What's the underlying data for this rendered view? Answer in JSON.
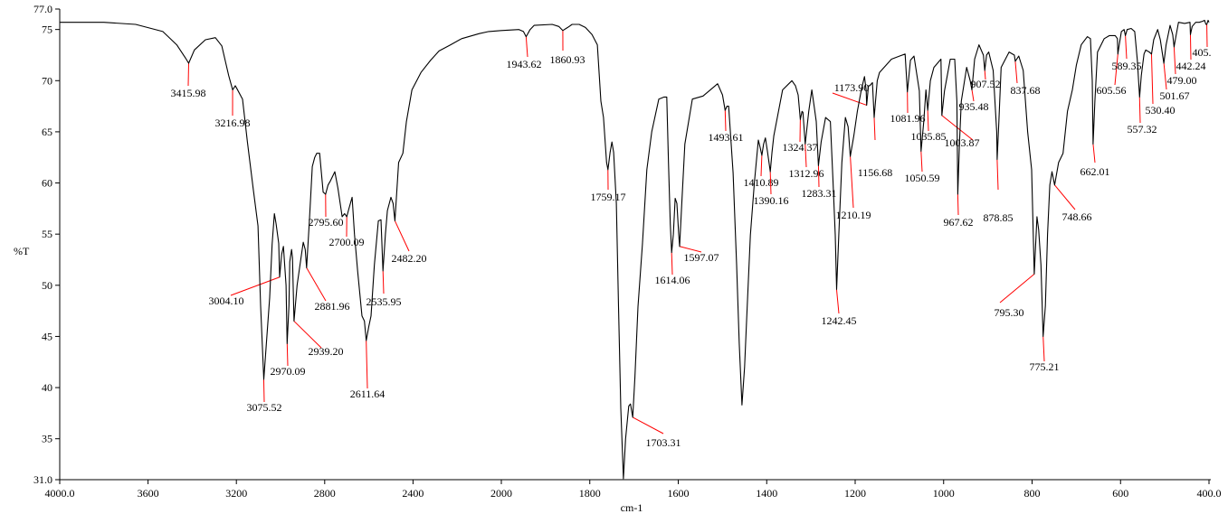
{
  "chart_data": {
    "type": "line",
    "xlabel": "cm-1",
    "ylabel": "%T",
    "xlim": [
      4000,
      400
    ],
    "x_reversed": true,
    "x_scale_change_at": 2000,
    "ylim": [
      31,
      77
    ],
    "grid": false,
    "x_ticks": [
      "4000.0",
      "3600",
      "3200",
      "2800",
      "2400",
      "2000",
      "1800",
      "1600",
      "1400",
      "1200",
      "1000",
      "800",
      "600",
      "400.0"
    ],
    "x_tick_values": [
      4000,
      3600,
      3200,
      2800,
      2400,
      2000,
      1800,
      1600,
      1400,
      1200,
      1000,
      800,
      600,
      400
    ],
    "y_ticks": [
      "77.0",
      "75",
      "70",
      "65",
      "60",
      "55",
      "50",
      "45",
      "40",
      "35",
      "31.0"
    ],
    "y_tick_values": [
      77,
      75,
      70,
      65,
      60,
      55,
      50,
      45,
      40,
      35,
      31
    ],
    "colors": {
      "trace": "#000000",
      "peak_marker": "#ff0000",
      "axis": "#000000"
    },
    "trace": [
      [
        4000,
        75.7
      ],
      [
        3800,
        75.7
      ],
      [
        3656,
        75.5
      ],
      [
        3533,
        74.8
      ],
      [
        3470,
        73.5
      ],
      [
        3430,
        72.2
      ],
      [
        3416,
        71.7
      ],
      [
        3390,
        73.0
      ],
      [
        3340,
        74.0
      ],
      [
        3295,
        74.2
      ],
      [
        3266,
        73.4
      ],
      [
        3235,
        70.5
      ],
      [
        3217,
        69.1
      ],
      [
        3205,
        69.5
      ],
      [
        3197,
        69.2
      ],
      [
        3172,
        68.2
      ],
      [
        3150,
        64
      ],
      [
        3123,
        59.3
      ],
      [
        3102,
        55.8
      ],
      [
        3090,
        48
      ],
      [
        3076,
        40.8
      ],
      [
        3065,
        44
      ],
      [
        3049,
        48.8
      ],
      [
        3038,
        54
      ],
      [
        3028,
        57.0
      ],
      [
        3020,
        56
      ],
      [
        3008,
        54.1
      ],
      [
        3004,
        50.8
      ],
      [
        2995,
        53
      ],
      [
        2987,
        53.8
      ],
      [
        2975,
        50
      ],
      [
        2970,
        44.3
      ],
      [
        2962,
        48
      ],
      [
        2958,
        52.3
      ],
      [
        2950,
        53.5
      ],
      [
        2946,
        52.7
      ],
      [
        2939,
        46.5
      ],
      [
        2925,
        50
      ],
      [
        2910,
        52.3
      ],
      [
        2897,
        54.2
      ],
      [
        2888,
        53.5
      ],
      [
        2882,
        51.7
      ],
      [
        2870,
        56
      ],
      [
        2856,
        61.6
      ],
      [
        2845,
        62.5
      ],
      [
        2836,
        62.9
      ],
      [
        2823,
        62.9
      ],
      [
        2807,
        59.1
      ],
      [
        2796,
        58.9
      ],
      [
        2785,
        59.8
      ],
      [
        2774,
        60.2
      ],
      [
        2754,
        61.1
      ],
      [
        2740,
        59.5
      ],
      [
        2721,
        56.7
      ],
      [
        2710,
        57.0
      ],
      [
        2700,
        56.7
      ],
      [
        2690,
        57.5
      ],
      [
        2676,
        58.6
      ],
      [
        2665,
        55
      ],
      [
        2651,
        51.4
      ],
      [
        2631,
        47.0
      ],
      [
        2620,
        46.5
      ],
      [
        2612,
        44.6
      ],
      [
        2600,
        46
      ],
      [
        2590,
        47.0
      ],
      [
        2575,
        52
      ],
      [
        2557,
        56.3
      ],
      [
        2545,
        56.4
      ],
      [
        2536,
        51.4
      ],
      [
        2525,
        55
      ],
      [
        2516,
        57.3
      ],
      [
        2500,
        58.6
      ],
      [
        2490,
        58
      ],
      [
        2482,
        56.3
      ],
      [
        2465,
        62
      ],
      [
        2446,
        62.9
      ],
      [
        2430,
        66
      ],
      [
        2405,
        69.1
      ],
      [
        2364,
        70.8
      ],
      [
        2320,
        72
      ],
      [
        2282,
        72.9
      ],
      [
        2230,
        73.5
      ],
      [
        2180,
        74.1
      ],
      [
        2100,
        74.6
      ],
      [
        2057,
        74.8
      ],
      [
        2000,
        74.9
      ],
      [
        1960,
        75.0
      ],
      [
        1950,
        74.8
      ],
      [
        1944,
        74.3
      ],
      [
        1935,
        75.0
      ],
      [
        1926,
        75.4
      ],
      [
        1885,
        75.5
      ],
      [
        1870,
        75.3
      ],
      [
        1861,
        74.9
      ],
      [
        1850,
        75.2
      ],
      [
        1840,
        75.5
      ],
      [
        1824,
        75.5
      ],
      [
        1810,
        75.2
      ],
      [
        1795,
        74.5
      ],
      [
        1783,
        73.5
      ],
      [
        1775,
        68
      ],
      [
        1769,
        66.4
      ],
      [
        1762,
        62
      ],
      [
        1759,
        61.3
      ],
      [
        1754,
        63
      ],
      [
        1750,
        64.0
      ],
      [
        1746,
        63
      ],
      [
        1740,
        58
      ],
      [
        1735,
        47.9
      ],
      [
        1730,
        38
      ],
      [
        1724,
        31.1
      ],
      [
        1719,
        35
      ],
      [
        1712,
        38.2
      ],
      [
        1708,
        38.4
      ],
      [
        1703,
        37.1
      ],
      [
        1698,
        41
      ],
      [
        1691,
        47.9
      ],
      [
        1681,
        54
      ],
      [
        1671,
        61.3
      ],
      [
        1660,
        65
      ],
      [
        1644,
        68.2
      ],
      [
        1632,
        68.4
      ],
      [
        1626,
        68.4
      ],
      [
        1622,
        62
      ],
      [
        1618,
        56
      ],
      [
        1615,
        53.2
      ],
      [
        1611,
        55
      ],
      [
        1607,
        58.5
      ],
      [
        1603,
        58.0
      ],
      [
        1599,
        55
      ],
      [
        1597,
        53.8
      ],
      [
        1592,
        58
      ],
      [
        1585,
        63.8
      ],
      [
        1568,
        68.2
      ],
      [
        1544,
        68.5
      ],
      [
        1530,
        69
      ],
      [
        1511,
        69.7
      ],
      [
        1500,
        68.6
      ],
      [
        1494,
        67.1
      ],
      [
        1490,
        67.5
      ],
      [
        1486,
        67.5
      ],
      [
        1476,
        61
      ],
      [
        1468,
        52
      ],
      [
        1462,
        44.3
      ],
      [
        1456,
        38.3
      ],
      [
        1450,
        42
      ],
      [
        1446,
        46.1
      ],
      [
        1437,
        54.9
      ],
      [
        1428,
        60
      ],
      [
        1419,
        64.2
      ],
      [
        1415,
        63.5
      ],
      [
        1411,
        62.7
      ],
      [
        1407,
        63.8
      ],
      [
        1403,
        64.4
      ],
      [
        1398,
        63
      ],
      [
        1392,
        61.1
      ],
      [
        1388,
        63
      ],
      [
        1384,
        64.6
      ],
      [
        1364,
        69.1
      ],
      [
        1343,
        70.0
      ],
      [
        1335,
        69.5
      ],
      [
        1329,
        68.6
      ],
      [
        1324,
        66.2
      ],
      [
        1320,
        67
      ],
      [
        1318,
        66.9
      ],
      [
        1313,
        63.8
      ],
      [
        1305,
        67
      ],
      [
        1298,
        69.1
      ],
      [
        1292,
        67.3
      ],
      [
        1288,
        66
      ],
      [
        1283,
        61.7
      ],
      [
        1277,
        64
      ],
      [
        1267,
        66.4
      ],
      [
        1256,
        66.0
      ],
      [
        1250,
        60
      ],
      [
        1245,
        54.9
      ],
      [
        1242,
        49.6
      ],
      [
        1237,
        54.9
      ],
      [
        1230,
        62
      ],
      [
        1222,
        66.4
      ],
      [
        1216,
        65.5
      ],
      [
        1211,
        62.6
      ],
      [
        1203,
        64.6
      ],
      [
        1195,
        67
      ],
      [
        1186,
        69.1
      ],
      [
        1179,
        70.4
      ],
      [
        1175,
        69
      ],
      [
        1174,
        67.6
      ],
      [
        1170,
        69.5
      ],
      [
        1167,
        69.5
      ],
      [
        1161,
        69.8
      ],
      [
        1157,
        66.4
      ],
      [
        1150,
        70
      ],
      [
        1145,
        70.8
      ],
      [
        1118,
        72.1
      ],
      [
        1100,
        72.4
      ],
      [
        1087,
        72.6
      ],
      [
        1082,
        68.9
      ],
      [
        1075,
        72
      ],
      [
        1067,
        72.4
      ],
      [
        1055,
        69
      ],
      [
        1051,
        63.1
      ],
      [
        1045,
        66
      ],
      [
        1040,
        69.1
      ],
      [
        1036,
        67.1
      ],
      [
        1030,
        70
      ],
      [
        1022,
        71.3
      ],
      [
        1006,
        72.1
      ],
      [
        1004,
        66.6
      ],
      [
        998,
        69
      ],
      [
        985,
        72.1
      ],
      [
        975,
        72.1
      ],
      [
        970,
        68
      ],
      [
        968,
        58.9
      ],
      [
        964,
        64
      ],
      [
        960,
        68
      ],
      [
        948,
        71.3
      ],
      [
        940,
        70
      ],
      [
        936,
        69.1
      ],
      [
        930,
        72.1
      ],
      [
        920,
        73.5
      ],
      [
        910,
        72.5
      ],
      [
        907,
        71.0
      ],
      [
        903,
        72.5
      ],
      [
        898,
        72.8
      ],
      [
        888,
        71
      ],
      [
        880,
        65
      ],
      [
        879,
        62.3
      ],
      [
        875,
        66
      ],
      [
        870,
        71.3
      ],
      [
        852,
        72.8
      ],
      [
        840,
        72.5
      ],
      [
        838,
        71.9
      ],
      [
        830,
        72.4
      ],
      [
        820,
        71
      ],
      [
        810,
        65
      ],
      [
        801,
        61.3
      ],
      [
        795,
        51.1
      ],
      [
        789,
        56.7
      ],
      [
        785,
        55.4
      ],
      [
        780,
        52
      ],
      [
        775,
        45.0
      ],
      [
        770,
        48
      ],
      [
        765,
        55
      ],
      [
        760,
        59.8
      ],
      [
        755,
        61.1
      ],
      [
        749,
        59.8
      ],
      [
        740,
        62
      ],
      [
        730,
        62.9
      ],
      [
        720,
        67
      ],
      [
        709,
        69.1
      ],
      [
        700,
        71.5
      ],
      [
        689,
        73.5
      ],
      [
        675,
        74.3
      ],
      [
        668,
        74.1
      ],
      [
        664,
        70
      ],
      [
        662,
        63.8
      ],
      [
        658,
        68
      ],
      [
        652,
        72.8
      ],
      [
        637,
        74.1
      ],
      [
        625,
        74.4
      ],
      [
        612,
        74.4
      ],
      [
        607,
        74.1
      ],
      [
        606,
        72.6
      ],
      [
        603,
        73.5
      ],
      [
        598,
        74.8
      ],
      [
        592,
        75.0
      ],
      [
        589,
        74.4
      ],
      [
        585,
        75.0
      ],
      [
        576,
        75.1
      ],
      [
        568,
        74.8
      ],
      [
        562,
        72
      ],
      [
        557,
        68.4
      ],
      [
        553,
        70.5
      ],
      [
        547,
        72.6
      ],
      [
        543,
        73
      ],
      [
        535,
        72.8
      ],
      [
        530,
        72.6
      ],
      [
        525,
        74
      ],
      [
        516,
        75.0
      ],
      [
        510,
        74
      ],
      [
        502,
        71.7
      ],
      [
        497,
        73.5
      ],
      [
        488,
        75.4
      ],
      [
        482,
        74.5
      ],
      [
        479,
        73.3
      ],
      [
        474,
        74.5
      ],
      [
        469,
        75.7
      ],
      [
        455,
        75.6
      ],
      [
        443,
        75.7
      ],
      [
        442,
        74.5
      ],
      [
        438,
        75.3
      ],
      [
        430,
        75.7
      ],
      [
        422,
        75.7
      ],
      [
        415,
        75.8
      ],
      [
        410,
        75.9
      ],
      [
        407,
        75.5
      ],
      [
        405,
        75.5
      ],
      [
        402,
        75.9
      ],
      [
        400,
        75.7
      ]
    ],
    "peak_labels": [
      {
        "text": "3415.98",
        "x": 3416,
        "y": 71.7
      },
      {
        "text": "3216.98",
        "x": 3217,
        "y": 69.1
      },
      {
        "text": "3075.52",
        "x": 3076,
        "y": 40.8
      },
      {
        "text": "3004.10",
        "x": 3004,
        "y": 50.8
      },
      {
        "text": "2970.09",
        "x": 2970,
        "y": 44.3
      },
      {
        "text": "2939.20",
        "x": 2939,
        "y": 46.5
      },
      {
        "text": "2881.96",
        "x": 2882,
        "y": 51.7
      },
      {
        "text": "2795.60",
        "x": 2796,
        "y": 58.9
      },
      {
        "text": "2700.09",
        "x": 2700,
        "y": 56.7
      },
      {
        "text": "2611.64",
        "x": 2612,
        "y": 44.6
      },
      {
        "text": "2535.95",
        "x": 2536,
        "y": 51.4
      },
      {
        "text": "2482.20",
        "x": 2482,
        "y": 56.3
      },
      {
        "text": "1943.62",
        "x": 1944,
        "y": 74.3
      },
      {
        "text": "1860.93",
        "x": 1861,
        "y": 74.9
      },
      {
        "text": "1759.17",
        "x": 1759,
        "y": 61.3
      },
      {
        "text": "1703.31",
        "x": 1703,
        "y": 37.1
      },
      {
        "text": "1614.06",
        "x": 1615,
        "y": 53.2
      },
      {
        "text": "1597.07",
        "x": 1597,
        "y": 53.8
      },
      {
        "text": "1493.61",
        "x": 1494,
        "y": 67.1
      },
      {
        "text": "1410.89",
        "x": 1411,
        "y": 62.7
      },
      {
        "text": "1390.16",
        "x": 1392,
        "y": 61.1
      },
      {
        "text": "1324.37",
        "x": 1324,
        "y": 66.2
      },
      {
        "text": "1312.96",
        "x": 1313,
        "y": 63.8
      },
      {
        "text": "1283.31",
        "x": 1283,
        "y": 61.7
      },
      {
        "text": "1242.45",
        "x": 1242,
        "y": 49.6
      },
      {
        "text": "1210.19",
        "x": 1211,
        "y": 62.6
      },
      {
        "text": "1173.90",
        "x": 1174,
        "y": 67.6
      },
      {
        "text": "1156.68",
        "x": 1157,
        "y": 66.4
      },
      {
        "text": "1081.96",
        "x": 1082,
        "y": 68.9
      },
      {
        "text": "1050.59",
        "x": 1051,
        "y": 63.1
      },
      {
        "text": "1035.85",
        "x": 1036,
        "y": 67.1
      },
      {
        "text": "1003.87",
        "x": 1004,
        "y": 66.6
      },
      {
        "text": "967.62",
        "x": 968,
        "y": 58.9
      },
      {
        "text": "935.48",
        "x": 936,
        "y": 69.1
      },
      {
        "text": "907.52",
        "x": 907,
        "y": 71.0
      },
      {
        "text": "878.85",
        "x": 879,
        "y": 62.3
      },
      {
        "text": "837.68",
        "x": 838,
        "y": 71.9
      },
      {
        "text": "795.30",
        "x": 795,
        "y": 51.1
      },
      {
        "text": "775.21",
        "x": 775,
        "y": 45.0
      },
      {
        "text": "748.66",
        "x": 749,
        "y": 59.8
      },
      {
        "text": "662.01",
        "x": 662,
        "y": 63.8
      },
      {
        "text": "605.56",
        "x": 606,
        "y": 72.6
      },
      {
        "text": "589.35",
        "x": 589,
        "y": 74.4
      },
      {
        "text": "557.32",
        "x": 557,
        "y": 68.4
      },
      {
        "text": "530.40",
        "x": 530,
        "y": 72.6
      },
      {
        "text": "501.67",
        "x": 502,
        "y": 71.7
      },
      {
        "text": "479.00",
        "x": 479,
        "y": 73.3
      },
      {
        "text": "442.24",
        "x": 442,
        "y": 74.5
      },
      {
        "text": "405.",
        "x": 405,
        "y": 75.5
      }
    ]
  }
}
